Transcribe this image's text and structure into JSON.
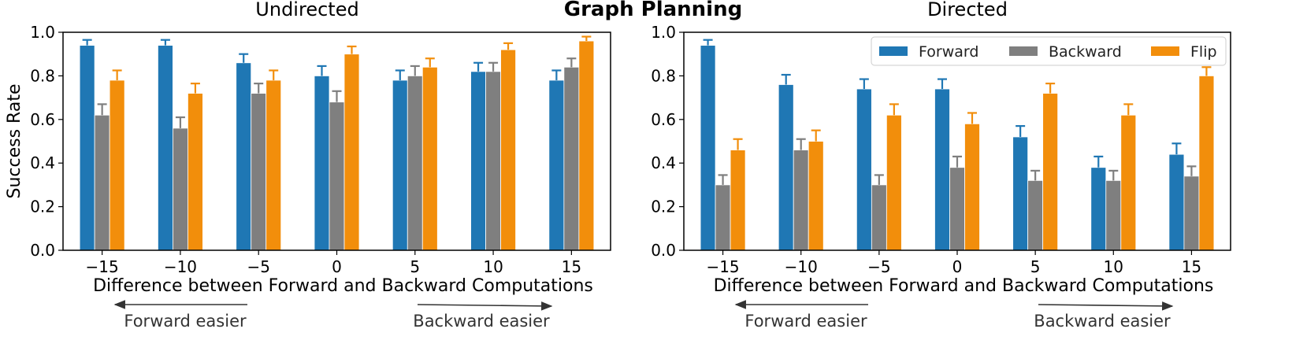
{
  "suptitle": "Graph Planning",
  "colors": {
    "Forward": "#1f77b4",
    "Backward": "#7f7f7f",
    "Flip": "#f28e0b"
  },
  "chart_data": [
    {
      "type": "bar",
      "title": "Undirected",
      "xlabel": "Difference between Forward and Backward Computations",
      "ylabel": "Success Rate",
      "categories": [
        "−15",
        "−10",
        "−5",
        "0",
        "5",
        "10",
        "15"
      ],
      "yticks": [
        "0.0",
        "0.2",
        "0.4",
        "0.6",
        "0.8",
        "1.0"
      ],
      "ylim": [
        0,
        1.0
      ],
      "series": [
        {
          "name": "Forward",
          "values": [
            0.94,
            0.94,
            0.86,
            0.8,
            0.78,
            0.82,
            0.78
          ],
          "errors": [
            0.025,
            0.025,
            0.04,
            0.045,
            0.045,
            0.04,
            0.045
          ]
        },
        {
          "name": "Backward",
          "values": [
            0.62,
            0.56,
            0.72,
            0.68,
            0.8,
            0.82,
            0.84
          ],
          "errors": [
            0.05,
            0.05,
            0.045,
            0.05,
            0.045,
            0.04,
            0.04
          ]
        },
        {
          "name": "Flip",
          "values": [
            0.78,
            0.72,
            0.78,
            0.9,
            0.84,
            0.92,
            0.96
          ],
          "errors": [
            0.045,
            0.045,
            0.045,
            0.035,
            0.04,
            0.03,
            0.02
          ]
        }
      ],
      "annotations": {
        "left": "Forward easier",
        "right": "Backward easier"
      },
      "legend": null
    },
    {
      "type": "bar",
      "title": "Directed",
      "xlabel": "Difference between Forward and Backward Computations",
      "ylabel": "",
      "categories": [
        "−15",
        "−10",
        "−5",
        "0",
        "5",
        "10",
        "15"
      ],
      "yticks": [
        "0.0",
        "0.2",
        "0.4",
        "0.6",
        "0.8",
        "1.0"
      ],
      "ylim": [
        0,
        1.0
      ],
      "series": [
        {
          "name": "Forward",
          "values": [
            0.94,
            0.76,
            0.74,
            0.74,
            0.52,
            0.38,
            0.44
          ],
          "errors": [
            0.025,
            0.045,
            0.045,
            0.045,
            0.05,
            0.05,
            0.05
          ]
        },
        {
          "name": "Backward",
          "values": [
            0.3,
            0.46,
            0.3,
            0.38,
            0.32,
            0.32,
            0.34
          ],
          "errors": [
            0.045,
            0.05,
            0.045,
            0.05,
            0.045,
            0.045,
            0.045
          ]
        },
        {
          "name": "Flip",
          "values": [
            0.46,
            0.5,
            0.62,
            0.58,
            0.72,
            0.62,
            0.8
          ],
          "errors": [
            0.05,
            0.05,
            0.05,
            0.05,
            0.045,
            0.05,
            0.04
          ]
        }
      ],
      "annotations": {
        "left": "Forward easier",
        "right": "Backward easier"
      },
      "legend": {
        "placement": "top-right",
        "entries": [
          "Forward",
          "Backward",
          "Flip"
        ]
      }
    }
  ]
}
